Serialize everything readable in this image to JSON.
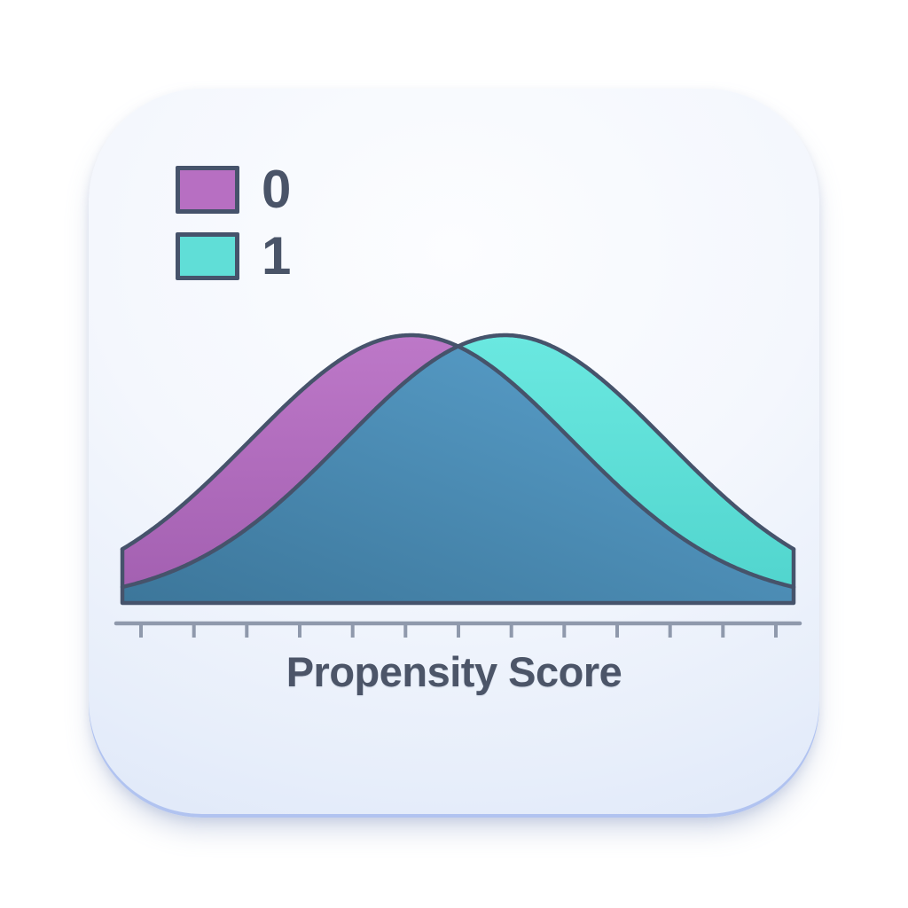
{
  "legend": {
    "items": [
      {
        "label": "0",
        "color": "#b76fc2"
      },
      {
        "label": "1",
        "color": "#60ded7"
      }
    ]
  },
  "axis": {
    "label": "Propensity Score",
    "tick_count": 13,
    "numeric_labels_visible": false
  },
  "chart_data": {
    "type": "area",
    "subtype": "overlapping-density-curves",
    "title": "",
    "xlabel": "Propensity Score",
    "ylabel": "",
    "x_range": [
      0,
      1
    ],
    "grid": false,
    "legend_position": "top-left",
    "series": [
      {
        "name": "0",
        "shape": "normal",
        "mean": 0.43,
        "sd": 0.24,
        "peak": 1.0
      },
      {
        "name": "1",
        "shape": "normal",
        "mean": 0.57,
        "sd": 0.24,
        "peak": 1.0
      }
    ],
    "overlap_note": "region under both curves shown in steel blue"
  },
  "colors": {
    "outline": "#46536b",
    "axis": "#8f99ac",
    "text": "#4a5468",
    "purple_top": "#bd78c8",
    "purple_bottom": "#a25fb0",
    "teal_top": "#6ae8e0",
    "teal_bottom": "#50d4cd",
    "overlap_top": "#5ba2ce",
    "overlap_bottom": "#3c769a",
    "legend_purple": "#b76fc2",
    "legend_teal": "#60ded7",
    "card_edge": "#b9c9ee"
  }
}
